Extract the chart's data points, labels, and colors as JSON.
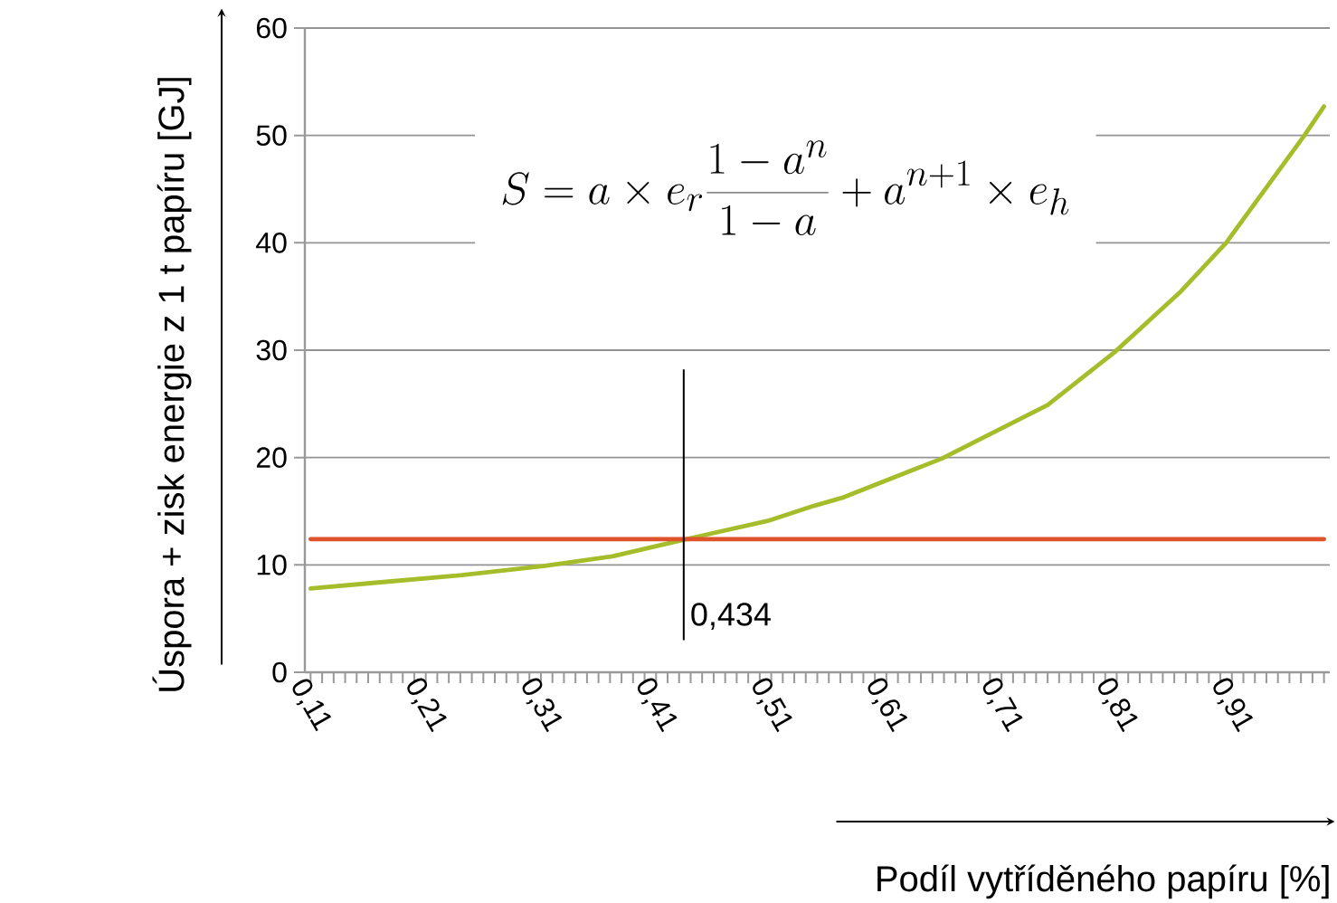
{
  "chart_data": {
    "type": "line",
    "xlabel": "Podíl vytříděného papíru [%]",
    "ylabel": "Úspora + zisk energie z 1 t papíru [GJ]",
    "annotations": [
      "S = a \\times e_r \\frac{1-a^n}{1-a} + a^{n+1} \\times e_h"
    ],
    "series": [
      {
        "color": "#a5bd2a",
        "x": [
          0.11,
          0.162,
          0.237,
          0.312,
          0.372,
          0.432,
          0.507,
          0.547,
          0.573,
          0.658,
          0.75,
          0.808,
          0.866,
          0.905,
          0.973,
          0.99
        ],
        "values": [
          7.8,
          8.3,
          9.0,
          9.9,
          10.8,
          12.3,
          14.1,
          15.5,
          16.3,
          19.9,
          24.9,
          29.8,
          35.5,
          40.0,
          50.0,
          52.7
        ]
      },
      {
        "color": "#e0522a",
        "x": [
          0.11,
          0.99
        ],
        "values": [
          12.4,
          12.4
        ]
      }
    ],
    "ref_lines": [
      {
        "axis": "x",
        "value": 0.434,
        "label": "0,434",
        "color": "#000000"
      }
    ],
    "xlim": [
      0.105,
      0.995
    ],
    "ylim": [
      0,
      60
    ],
    "yticks": [
      0,
      10,
      20,
      30,
      40,
      50,
      60
    ],
    "xticks": [
      {
        "value": 0.11,
        "label": "0,11"
      },
      {
        "value": 0.12,
        "label": null
      },
      {
        "value": 0.13,
        "label": null
      },
      {
        "value": 0.14,
        "label": null
      },
      {
        "value": 0.15,
        "label": null
      },
      {
        "value": 0.16,
        "label": null
      },
      {
        "value": 0.17,
        "label": null
      },
      {
        "value": 0.18,
        "label": null
      },
      {
        "value": 0.19,
        "label": null
      },
      {
        "value": 0.2,
        "label": null
      },
      {
        "value": 0.21,
        "label": "0,21"
      },
      {
        "value": 0.22,
        "label": null
      },
      {
        "value": 0.23,
        "label": null
      },
      {
        "value": 0.24,
        "label": null
      },
      {
        "value": 0.25,
        "label": null
      },
      {
        "value": 0.26,
        "label": null
      },
      {
        "value": 0.27,
        "label": null
      },
      {
        "value": 0.28,
        "label": null
      },
      {
        "value": 0.29,
        "label": null
      },
      {
        "value": 0.3,
        "label": null
      },
      {
        "value": 0.31,
        "label": "0,31"
      },
      {
        "value": 0.32,
        "label": null
      },
      {
        "value": 0.33,
        "label": null
      },
      {
        "value": 0.34,
        "label": null
      },
      {
        "value": 0.35,
        "label": null
      },
      {
        "value": 0.36,
        "label": null
      },
      {
        "value": 0.37,
        "label": null
      },
      {
        "value": 0.38,
        "label": null
      },
      {
        "value": 0.39,
        "label": null
      },
      {
        "value": 0.4,
        "label": null
      },
      {
        "value": 0.41,
        "label": "0,41"
      },
      {
        "value": 0.42,
        "label": null
      },
      {
        "value": 0.43,
        "label": null
      },
      {
        "value": 0.44,
        "label": null
      },
      {
        "value": 0.45,
        "label": null
      },
      {
        "value": 0.46,
        "label": null
      },
      {
        "value": 0.47,
        "label": null
      },
      {
        "value": 0.48,
        "label": null
      },
      {
        "value": 0.49,
        "label": null
      },
      {
        "value": 0.5,
        "label": null
      },
      {
        "value": 0.51,
        "label": "0,51"
      },
      {
        "value": 0.52,
        "label": null
      },
      {
        "value": 0.53,
        "label": null
      },
      {
        "value": 0.54,
        "label": null
      },
      {
        "value": 0.55,
        "label": null
      },
      {
        "value": 0.56,
        "label": null
      },
      {
        "value": 0.57,
        "label": null
      },
      {
        "value": 0.58,
        "label": null
      },
      {
        "value": 0.59,
        "label": null
      },
      {
        "value": 0.6,
        "label": null
      },
      {
        "value": 0.61,
        "label": "0,61"
      },
      {
        "value": 0.62,
        "label": null
      },
      {
        "value": 0.63,
        "label": null
      },
      {
        "value": 0.64,
        "label": null
      },
      {
        "value": 0.65,
        "label": null
      },
      {
        "value": 0.66,
        "label": null
      },
      {
        "value": 0.67,
        "label": null
      },
      {
        "value": 0.68,
        "label": null
      },
      {
        "value": 0.69,
        "label": null
      },
      {
        "value": 0.7,
        "label": null
      },
      {
        "value": 0.71,
        "label": "0,71"
      },
      {
        "value": 0.72,
        "label": null
      },
      {
        "value": 0.73,
        "label": null
      },
      {
        "value": 0.74,
        "label": null
      },
      {
        "value": 0.75,
        "label": null
      },
      {
        "value": 0.76,
        "label": null
      },
      {
        "value": 0.77,
        "label": null
      },
      {
        "value": 0.78,
        "label": null
      },
      {
        "value": 0.79,
        "label": null
      },
      {
        "value": 0.8,
        "label": null
      },
      {
        "value": 0.81,
        "label": "0,81"
      },
      {
        "value": 0.82,
        "label": null
      },
      {
        "value": 0.83,
        "label": null
      },
      {
        "value": 0.84,
        "label": null
      },
      {
        "value": 0.85,
        "label": null
      },
      {
        "value": 0.86,
        "label": null
      },
      {
        "value": 0.87,
        "label": null
      },
      {
        "value": 0.88,
        "label": null
      },
      {
        "value": 0.89,
        "label": null
      },
      {
        "value": 0.9,
        "label": null
      },
      {
        "value": 0.91,
        "label": "0,91"
      },
      {
        "value": 0.92,
        "label": null
      },
      {
        "value": 0.93,
        "label": null
      },
      {
        "value": 0.94,
        "label": null
      },
      {
        "value": 0.95,
        "label": null
      },
      {
        "value": 0.96,
        "label": null
      },
      {
        "value": 0.97,
        "label": null
      },
      {
        "value": 0.98,
        "label": null
      },
      {
        "value": 0.99,
        "label": null
      }
    ],
    "grid": "y",
    "marker": "none",
    "line_style": "solid"
  }
}
